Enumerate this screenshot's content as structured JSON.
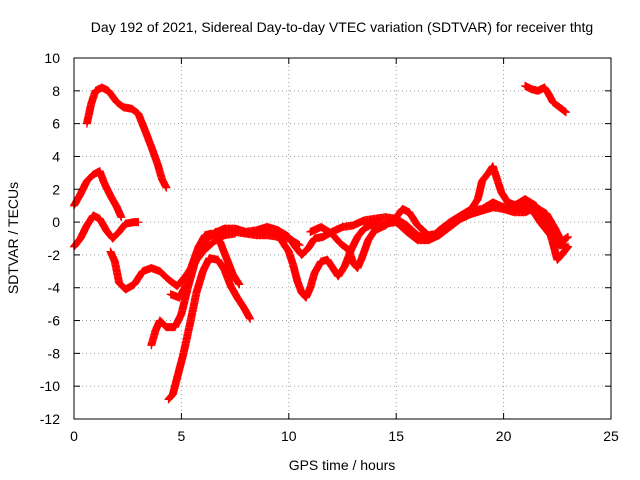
{
  "chart_data": {
    "type": "scatter",
    "title": "Day 192 of 2021, Sidereal Day-to-day VTEC variation (SDTVAR) for receiver thtg",
    "xlabel": "GPS time / hours",
    "ylabel": "SDTVAR / TECUs",
    "xlim": [
      0,
      25
    ],
    "ylim": [
      -12,
      10
    ],
    "xticks": [
      0,
      5,
      10,
      15,
      20,
      25
    ],
    "yticks": [
      -12,
      -10,
      -8,
      -6,
      -4,
      -2,
      0,
      2,
      4,
      6,
      8,
      10
    ],
    "grid": true,
    "marker": "+",
    "color": "#ff0000",
    "series": [
      {
        "name": "trace-1",
        "points": [
          [
            0.6,
            6.0
          ],
          [
            0.8,
            7.2
          ],
          [
            1.0,
            8.0
          ],
          [
            1.3,
            8.2
          ],
          [
            1.6,
            8.0
          ],
          [
            2.0,
            7.3
          ],
          [
            2.3,
            7.0
          ],
          [
            2.7,
            6.9
          ],
          [
            3.0,
            6.6
          ],
          [
            3.3,
            5.6
          ],
          [
            3.6,
            4.6
          ],
          [
            3.9,
            3.5
          ],
          [
            4.1,
            2.6
          ],
          [
            4.3,
            2.1
          ]
        ]
      },
      {
        "name": "trace-2",
        "points": [
          [
            0.0,
            1.0
          ],
          [
            0.3,
            1.7
          ],
          [
            0.6,
            2.5
          ],
          [
            0.9,
            2.9
          ],
          [
            1.2,
            3.1
          ],
          [
            1.4,
            2.4
          ],
          [
            1.7,
            1.6
          ],
          [
            2.0,
            0.9
          ],
          [
            2.2,
            0.3
          ]
        ]
      },
      {
        "name": "trace-3",
        "points": [
          [
            0.0,
            -1.5
          ],
          [
            0.3,
            -1.0
          ],
          [
            0.6,
            -0.2
          ],
          [
            0.9,
            0.4
          ],
          [
            1.2,
            0.2
          ],
          [
            1.5,
            -0.5
          ],
          [
            1.8,
            -1.0
          ],
          [
            2.1,
            -0.6
          ],
          [
            2.4,
            -0.1
          ],
          [
            2.8,
            0.0
          ],
          [
            3.0,
            0.0
          ]
        ]
      },
      {
        "name": "trace-4",
        "points": [
          [
            1.7,
            -1.8
          ],
          [
            1.9,
            -2.4
          ],
          [
            2.1,
            -3.7
          ],
          [
            2.4,
            -4.1
          ],
          [
            2.8,
            -3.8
          ],
          [
            3.2,
            -3.0
          ],
          [
            3.6,
            -2.8
          ],
          [
            4.0,
            -3.0
          ],
          [
            4.4,
            -3.5
          ],
          [
            4.8,
            -3.9
          ],
          [
            5.2,
            -3.3
          ],
          [
            5.6,
            -2.5
          ],
          [
            6.0,
            -1.8
          ],
          [
            6.5,
            -1.2
          ],
          [
            7.0,
            -0.8
          ],
          [
            7.5,
            -0.7
          ]
        ]
      },
      {
        "name": "trace-5",
        "points": [
          [
            3.6,
            -7.5
          ],
          [
            3.8,
            -6.6
          ],
          [
            4.0,
            -6.0
          ],
          [
            4.3,
            -6.4
          ],
          [
            4.7,
            -6.4
          ],
          [
            5.0,
            -5.6
          ],
          [
            5.3,
            -4.0
          ],
          [
            5.6,
            -2.6
          ],
          [
            5.9,
            -1.6
          ],
          [
            6.2,
            -1.0
          ],
          [
            6.6,
            -0.6
          ],
          [
            7.0,
            -0.5
          ],
          [
            7.5,
            -0.6
          ],
          [
            8.0,
            -0.7
          ],
          [
            8.5,
            -0.8
          ],
          [
            9.0,
            -0.8
          ],
          [
            9.5,
            -0.9
          ],
          [
            10.0,
            -1.0
          ],
          [
            10.5,
            -1.4
          ]
        ]
      },
      {
        "name": "trace-6",
        "points": [
          [
            4.4,
            -10.8
          ],
          [
            4.6,
            -10.5
          ],
          [
            4.8,
            -9.5
          ],
          [
            5.1,
            -8.0
          ],
          [
            5.4,
            -6.2
          ],
          [
            5.7,
            -4.3
          ],
          [
            6.0,
            -3.0
          ],
          [
            6.3,
            -2.2
          ],
          [
            6.7,
            -2.3
          ],
          [
            7.0,
            -2.9
          ],
          [
            7.3,
            -3.9
          ],
          [
            7.6,
            -4.6
          ],
          [
            7.9,
            -5.2
          ],
          [
            8.2,
            -5.9
          ]
        ]
      },
      {
        "name": "trace-7",
        "points": [
          [
            4.5,
            -4.4
          ],
          [
            4.9,
            -4.6
          ],
          [
            5.2,
            -3.9
          ],
          [
            5.5,
            -2.6
          ],
          [
            5.8,
            -1.5
          ],
          [
            6.1,
            -0.8
          ],
          [
            6.4,
            -0.7
          ],
          [
            6.8,
            -1.2
          ],
          [
            7.1,
            -2.2
          ],
          [
            7.4,
            -3.2
          ],
          [
            7.7,
            -3.8
          ]
        ]
      },
      {
        "name": "trace-8",
        "points": [
          [
            6.5,
            -0.7
          ],
          [
            7.0,
            -0.4
          ],
          [
            7.5,
            -0.4
          ],
          [
            8.0,
            -0.6
          ],
          [
            8.5,
            -0.5
          ],
          [
            9.0,
            -0.3
          ],
          [
            9.5,
            -0.5
          ],
          [
            10.0,
            -0.9
          ],
          [
            10.3,
            -1.5
          ],
          [
            10.6,
            -2.0
          ],
          [
            10.9,
            -1.6
          ],
          [
            11.2,
            -1.0
          ],
          [
            11.6,
            -0.9
          ],
          [
            12.0,
            -0.6
          ],
          [
            12.5,
            -0.3
          ],
          [
            13.0,
            -0.2
          ],
          [
            13.5,
            0.1
          ],
          [
            14.0,
            0.2
          ],
          [
            14.5,
            0.3
          ],
          [
            15.0,
            0.2
          ],
          [
            15.5,
            -0.2
          ],
          [
            16.0,
            -0.8
          ],
          [
            16.5,
            -1.1
          ],
          [
            17.0,
            -0.8
          ],
          [
            17.5,
            -0.3
          ],
          [
            18.0,
            0.2
          ],
          [
            18.5,
            0.5
          ],
          [
            19.0,
            0.7
          ],
          [
            19.5,
            0.9
          ],
          [
            20.0,
            0.8
          ],
          [
            20.5,
            0.6
          ],
          [
            21.0,
            0.6
          ],
          [
            21.5,
            0.9
          ],
          [
            22.0,
            0.5
          ],
          [
            22.4,
            -0.4
          ],
          [
            22.7,
            -1.2
          ],
          [
            23.0,
            -0.9
          ]
        ]
      },
      {
        "name": "trace-9",
        "points": [
          [
            8.8,
            -0.4
          ],
          [
            9.3,
            -0.6
          ],
          [
            9.7,
            -1.2
          ],
          [
            10.0,
            -1.8
          ],
          [
            10.2,
            -2.6
          ],
          [
            10.4,
            -3.6
          ],
          [
            10.6,
            -4.3
          ],
          [
            10.8,
            -4.6
          ],
          [
            11.0,
            -4.0
          ],
          [
            11.2,
            -3.1
          ],
          [
            11.5,
            -2.4
          ],
          [
            11.8,
            -2.3
          ],
          [
            12.1,
            -2.9
          ],
          [
            12.3,
            -3.3
          ],
          [
            12.6,
            -2.7
          ],
          [
            12.9,
            -1.7
          ],
          [
            13.2,
            -0.9
          ],
          [
            13.5,
            -0.4
          ],
          [
            13.9,
            -0.1
          ],
          [
            14.3,
            0.0
          ]
        ]
      },
      {
        "name": "trace-10",
        "points": [
          [
            11.0,
            -0.6
          ],
          [
            11.5,
            -0.3
          ],
          [
            12.0,
            -0.7
          ],
          [
            12.4,
            -1.3
          ],
          [
            12.8,
            -1.7
          ],
          [
            13.0,
            -2.5
          ],
          [
            13.2,
            -2.8
          ],
          [
            13.4,
            -2.2
          ],
          [
            13.7,
            -1.1
          ],
          [
            14.0,
            -0.5
          ],
          [
            14.5,
            -0.2
          ],
          [
            15.0,
            0.3
          ],
          [
            15.3,
            0.8
          ],
          [
            15.6,
            0.6
          ],
          [
            16.0,
            -0.2
          ],
          [
            16.5,
            -0.8
          ],
          [
            17.0,
            -0.7
          ],
          [
            17.5,
            -0.2
          ],
          [
            18.0,
            0.3
          ],
          [
            18.5,
            0.7
          ],
          [
            19.0,
            0.8
          ],
          [
            19.5,
            1.2
          ],
          [
            20.0,
            0.9
          ],
          [
            20.5,
            1.0
          ],
          [
            21.0,
            1.4
          ],
          [
            21.5,
            1.0
          ],
          [
            22.0,
            0.0
          ],
          [
            22.3,
            -1.3
          ],
          [
            22.5,
            -2.3
          ],
          [
            22.7,
            -2.0
          ],
          [
            23.0,
            -1.5
          ]
        ]
      },
      {
        "name": "trace-11",
        "points": [
          [
            14.0,
            -0.4
          ],
          [
            14.5,
            -0.1
          ],
          [
            15.0,
            0.0
          ],
          [
            15.5,
            -0.6
          ],
          [
            16.0,
            -1.1
          ],
          [
            16.5,
            -1.1
          ],
          [
            17.0,
            -0.5
          ],
          [
            17.5,
            0.0
          ],
          [
            18.0,
            0.4
          ],
          [
            18.5,
            0.8
          ],
          [
            18.8,
            1.4
          ],
          [
            19.0,
            2.5
          ],
          [
            19.3,
            3.0
          ],
          [
            19.5,
            3.4
          ],
          [
            19.7,
            2.6
          ],
          [
            19.9,
            1.8
          ],
          [
            20.2,
            1.2
          ],
          [
            20.6,
            1.0
          ],
          [
            21.0,
            1.0
          ]
        ]
      },
      {
        "name": "trace-12",
        "points": [
          [
            21.0,
            8.3
          ],
          [
            21.3,
            8.1
          ],
          [
            21.6,
            8.0
          ],
          [
            21.9,
            8.2
          ],
          [
            22.1,
            7.8
          ],
          [
            22.3,
            7.3
          ],
          [
            22.6,
            7.0
          ],
          [
            22.9,
            6.7
          ]
        ]
      },
      {
        "name": "trace-13",
        "points": [
          [
            20.0,
            0.9
          ],
          [
            20.5,
            0.7
          ],
          [
            21.0,
            1.0
          ],
          [
            21.4,
            0.6
          ],
          [
            21.7,
            0.0
          ],
          [
            22.0,
            -0.5
          ],
          [
            22.3,
            -1.0
          ],
          [
            22.6,
            -1.4
          ],
          [
            22.9,
            -1.4
          ]
        ]
      }
    ]
  }
}
